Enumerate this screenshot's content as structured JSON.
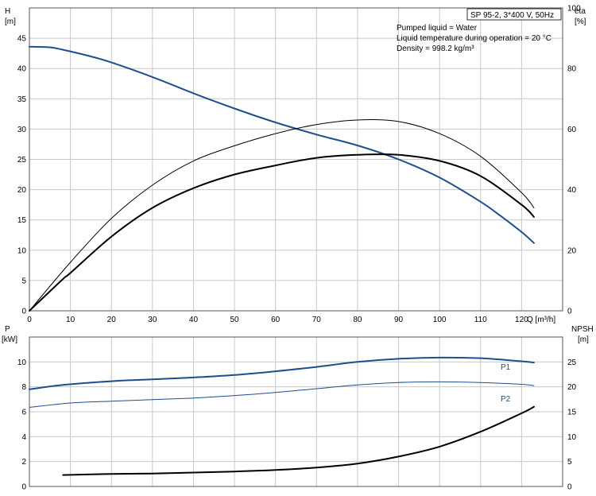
{
  "chart_data": [
    {
      "type": "line",
      "title": "SP 95-2, 3*400 V, 50Hz",
      "info": [
        "Pumped liquid = Water",
        "Liquid temperature during operation = 20 °C",
        "Density = 998.2 kg/m³"
      ],
      "xlabel": "Q [m³/h]",
      "xlim": [
        0,
        130
      ],
      "x_ticks": [
        0,
        10,
        20,
        30,
        40,
        50,
        60,
        70,
        80,
        90,
        100,
        110,
        120
      ],
      "y_left": {
        "label": "H",
        "unit": "[m]",
        "lim": [
          0,
          50
        ],
        "ticks": [
          0,
          5,
          10,
          15,
          20,
          25,
          30,
          35,
          40,
          45
        ]
      },
      "y_right": {
        "label": "eta",
        "unit": "[%]",
        "lim": [
          0,
          100
        ],
        "ticks": [
          0,
          20,
          40,
          60,
          80,
          100
        ]
      },
      "grid": true,
      "series": [
        {
          "axis": "left",
          "color": "#1f4e8c",
          "width": 2,
          "x": [
            0,
            5,
            8.2,
            15,
            20,
            30,
            40,
            50,
            60,
            70,
            80,
            90,
            100,
            110,
            115,
            120,
            123
          ],
          "values": [
            43.6,
            43.5,
            43.1,
            42.0,
            41.0,
            38.6,
            35.9,
            33.4,
            31.1,
            29.1,
            27.3,
            25.0,
            22.0,
            18.0,
            15.6,
            13.0,
            11.2
          ]
        },
        {
          "axis": "right",
          "color": "#000000",
          "width": 1,
          "x": [
            0,
            10,
            20,
            30,
            40,
            50,
            60,
            70,
            80,
            90,
            100,
            110,
            120,
            123
          ],
          "values": [
            0,
            16.0,
            30.5,
            41.5,
            49.5,
            54.5,
            58.5,
            61.5,
            63.0,
            62.5,
            58.5,
            51.0,
            39.0,
            34.0
          ]
        },
        {
          "axis": "right",
          "color": "#000000",
          "width": 2,
          "x": [
            0,
            8.2,
            10,
            20,
            30,
            40,
            50,
            60,
            70,
            80,
            90,
            100,
            110,
            120,
            123
          ],
          "values": [
            0,
            10.5,
            12.5,
            24.5,
            34.0,
            40.5,
            45.0,
            48.0,
            50.5,
            51.5,
            51.5,
            49.5,
            44.5,
            35.0,
            31.0
          ]
        }
      ]
    },
    {
      "type": "line",
      "xlim": [
        0,
        130
      ],
      "y_left": {
        "label": "P",
        "unit": "[kW]",
        "lim": [
          0,
          12
        ],
        "ticks": [
          0,
          2,
          4,
          6,
          8,
          10
        ]
      },
      "y_right": {
        "label": "NPSH",
        "unit": "[m]",
        "lim": [
          0,
          30
        ],
        "ticks": [
          0,
          5,
          10,
          15,
          20,
          25
        ]
      },
      "grid": true,
      "series": [
        {
          "name": "P1",
          "axis": "left",
          "color": "#1f4e8c",
          "width": 2,
          "x": [
            0,
            8.2,
            20,
            30,
            40,
            50,
            60,
            70,
            80,
            90,
            100,
            110,
            120,
            123
          ],
          "values": [
            7.8,
            8.15,
            8.45,
            8.6,
            8.75,
            8.95,
            9.25,
            9.6,
            10.0,
            10.25,
            10.35,
            10.3,
            10.05,
            9.95
          ]
        },
        {
          "name": "P2",
          "axis": "left",
          "color": "#1f4e8c",
          "width": 1,
          "x": [
            0,
            10,
            20,
            30,
            40,
            50,
            60,
            70,
            80,
            90,
            100,
            110,
            120,
            123
          ],
          "values": [
            6.35,
            6.7,
            6.85,
            6.97,
            7.1,
            7.3,
            7.55,
            7.85,
            8.15,
            8.35,
            8.4,
            8.35,
            8.2,
            8.1
          ]
        },
        {
          "axis": "right",
          "color": "#000000",
          "width": 2,
          "x": [
            8.2,
            20,
            30,
            40,
            50,
            60,
            70,
            80,
            90,
            100,
            110,
            120,
            123
          ],
          "values": [
            2.3,
            2.5,
            2.6,
            2.8,
            3.0,
            3.3,
            3.8,
            4.6,
            6.0,
            8.0,
            11.0,
            14.7,
            16.0
          ]
        }
      ]
    }
  ]
}
